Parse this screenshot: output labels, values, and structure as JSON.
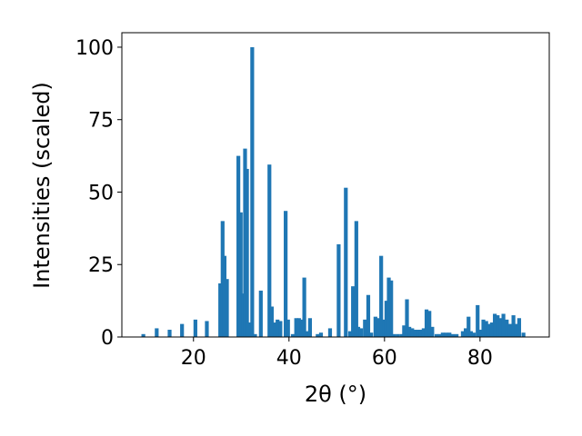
{
  "chart_data": {
    "type": "bar",
    "title": "",
    "xlabel": "2θ (°)",
    "ylabel": "Intensities (scaled)",
    "xlim": [
      5,
      94.5
    ],
    "ylim": [
      0,
      105
    ],
    "xticks": [
      20,
      40,
      60,
      80
    ],
    "yticks": [
      0,
      25,
      50,
      75,
      100
    ],
    "grid": false,
    "bar_color": "#1f77b4",
    "bar_width": 0.8,
    "x": [
      9.5,
      12.3,
      15,
      17.6,
      20.4,
      22.8,
      25.6,
      26.1,
      26.5,
      27,
      29.4,
      29.9,
      30.4,
      30.8,
      31.2,
      31.6,
      32.3,
      32.9,
      34.1,
      35.9,
      36.4,
      37.1,
      37.6,
      38.2,
      39.3,
      39.8,
      40.8,
      41.5,
      42.1,
      42.7,
      43.2,
      43.8,
      44.4,
      46,
      46.7,
      48.6,
      50.4,
      51.9,
      52.8,
      53.4,
      54.1,
      54.5,
      55.1,
      55.9,
      56.6,
      57.2,
      58.1,
      58.6,
      59.3,
      59.9,
      60.4,
      60.9,
      61.4,
      62,
      62.8,
      63.6,
      64.1,
      64.7,
      65.2,
      65.8,
      66.4,
      67,
      67.6,
      68.2,
      68.8,
      69.4,
      70,
      70.9,
      71.6,
      72.2,
      72.9,
      73.6,
      74.3,
      75.1,
      76.4,
      77,
      77.6,
      78.1,
      78.7,
      79.5,
      80.1,
      80.7,
      81.3,
      81.9,
      82.5,
      83.1,
      83.7,
      84.3,
      84.9,
      85.6,
      86.3,
      87,
      87.6,
      88.2,
      89.1
    ],
    "values": [
      1,
      3,
      2.5,
      4.5,
      6,
      5.5,
      18.5,
      40,
      28,
      20,
      62.5,
      43,
      15,
      65,
      58,
      5,
      100,
      1,
      16,
      59.5,
      10.5,
      5,
      6,
      5.5,
      43.5,
      6,
      1,
      6.5,
      6.5,
      6,
      20.5,
      2,
      6.5,
      1,
      1.5,
      3,
      32,
      51.5,
      2,
      17.5,
      40,
      3.5,
      3,
      6,
      14.5,
      1.5,
      7,
      6.5,
      28,
      6,
      12.5,
      20.5,
      19.5,
      1,
      1,
      1,
      4,
      13,
      3.5,
      3,
      2.5,
      2.5,
      2.5,
      3,
      9.5,
      9,
      3.5,
      1,
      1,
      1.5,
      1.5,
      1.5,
      1,
      1,
      2,
      3,
      7,
      2,
      1.5,
      11,
      2.5,
      6,
      5.5,
      4.5,
      5,
      8,
      7.5,
      6.5,
      8,
      6,
      4.5,
      7.5,
      4.5,
      6.5,
      1.5
    ]
  }
}
